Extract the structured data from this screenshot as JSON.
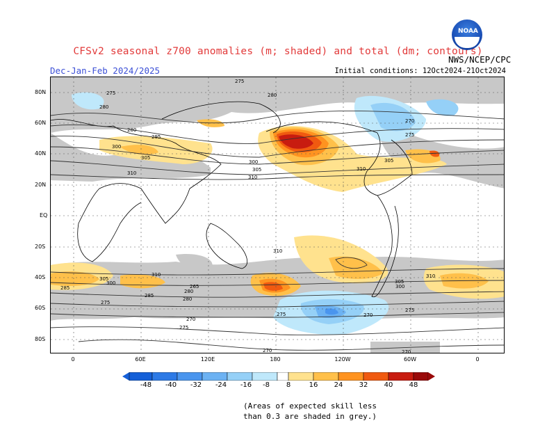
{
  "title": "CFSv2 seasonal z700 anomalies (m; shaded) and total (dm; contours)",
  "season": "Dec-Jan-Feb 2024/2025",
  "initial_conditions": "Initial conditions: 12Oct2024-21Oct2024",
  "agency": "NWS/NCEP/CPC",
  "logo_text": "NOAA",
  "lat_labels": [
    "80N",
    "60N",
    "40N",
    "20N",
    "EQ",
    "20S",
    "40S",
    "60S",
    "80S"
  ],
  "lon_labels": [
    "0",
    "60E",
    "120E",
    "180",
    "120W",
    "60W",
    "0"
  ],
  "contour_labels": [
    "275",
    "280",
    "285",
    "295",
    "300",
    "305",
    "310",
    "265",
    "270"
  ],
  "colorbar": {
    "ticks": [
      "-48",
      "-40",
      "-32",
      "-24",
      "-16",
      "-8",
      "8",
      "16",
      "24",
      "32",
      "40",
      "48"
    ],
    "colors": [
      "#1560d8",
      "#2d7ae6",
      "#4a95ee",
      "#6cb2f3",
      "#95d0f7",
      "#bfe8fb",
      "#ffffff",
      "#ffe28e",
      "#ffc04a",
      "#ff9320",
      "#f05a10",
      "#c81c10",
      "#9a0a0a"
    ]
  },
  "note_line1": "(Areas of expected skill less",
  "note_line2": "than 0.3 are shaded in grey.)",
  "colors": {
    "title": "#e23a3a",
    "season": "#3b4fd6",
    "skill_grey": "#c8c8c8"
  }
}
